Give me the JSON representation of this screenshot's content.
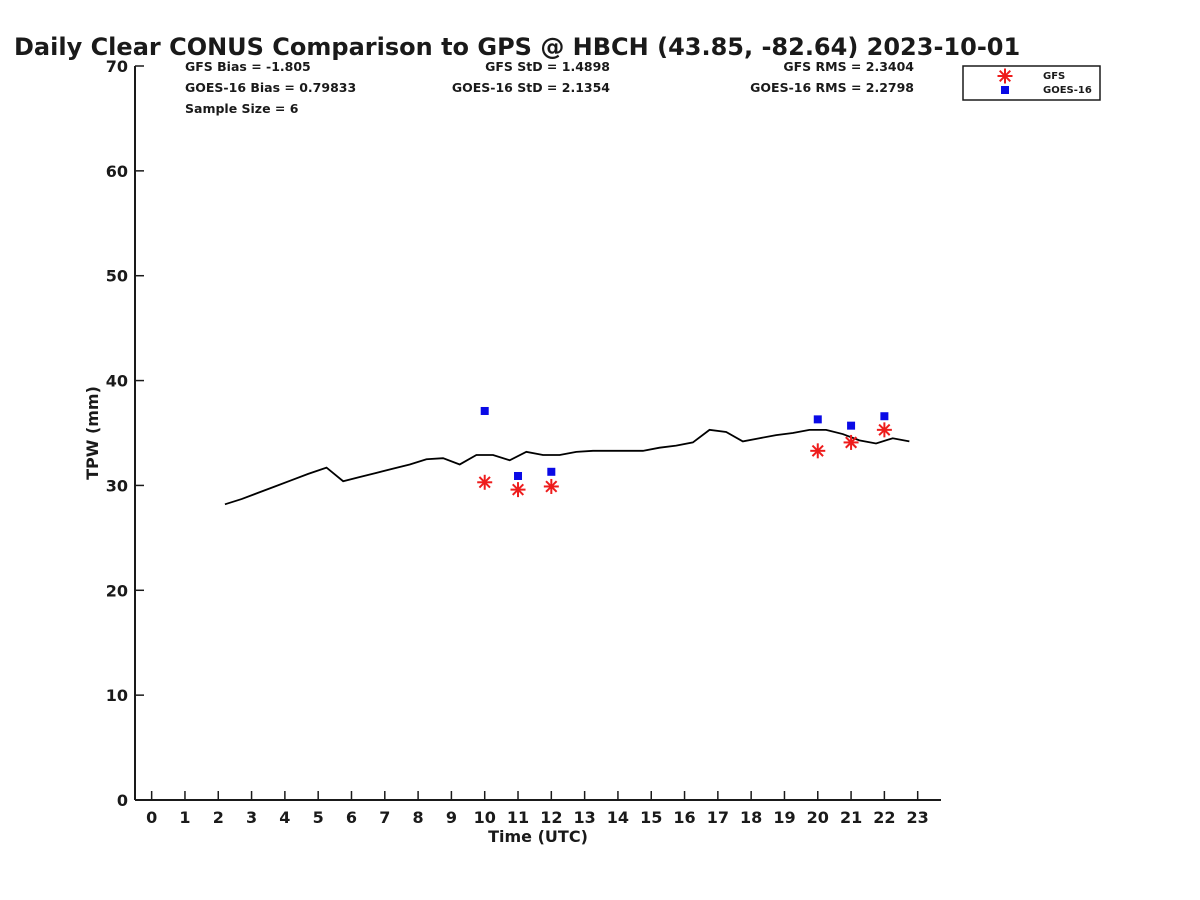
{
  "chart_data": {
    "type": "line",
    "title": "Daily Clear CONUS Comparison to GPS @ HBCH (43.85, -82.64) 2023-10-01",
    "xlabel": "Time (UTC)",
    "ylabel": "TPW (mm)",
    "xlim": [
      -0.5,
      23.7
    ],
    "ylim": [
      0,
      70
    ],
    "xticks": [
      0,
      1,
      2,
      3,
      4,
      5,
      6,
      7,
      8,
      9,
      10,
      11,
      12,
      13,
      14,
      15,
      16,
      17,
      18,
      19,
      20,
      21,
      22,
      23
    ],
    "yticks": [
      0,
      10,
      20,
      30,
      40,
      50,
      60,
      70
    ],
    "grid": false,
    "legend_position": "top-right",
    "stats": [
      "GFS Bias = -1.805",
      "GFS StD = 1.4898",
      "GFS RMS = 2.3404",
      "GOES-16 Bias = 0.79833",
      "GOES-16 StD = 2.1354",
      "GOES-16 RMS = 2.2798",
      "Sample Size = 6"
    ],
    "series": [
      {
        "kind": "line",
        "color": "#000000",
        "x": [
          2.2,
          2.7,
          3.2,
          3.7,
          4.2,
          4.7,
          5.25,
          5.75,
          6.25,
          6.75,
          7.25,
          7.75,
          8.25,
          8.75,
          9.25,
          9.75,
          10.25,
          10.75,
          11.25,
          11.75,
          12.25,
          12.75,
          13.25,
          13.75,
          14.25,
          14.75,
          15.25,
          15.75,
          16.25,
          16.75,
          17.25,
          17.75,
          18.25,
          18.75,
          19.25,
          19.75,
          20.25,
          20.75,
          21.25,
          21.75,
          22.25,
          22.75
        ],
        "y": [
          28.2,
          28.7,
          29.3,
          29.9,
          30.5,
          31.1,
          31.7,
          30.4,
          30.8,
          31.2,
          31.6,
          32.0,
          32.5,
          32.6,
          32.0,
          32.9,
          32.9,
          32.4,
          33.2,
          32.9,
          32.9,
          33.2,
          33.3,
          33.3,
          33.3,
          33.3,
          33.6,
          33.8,
          34.1,
          35.3,
          35.1,
          34.2,
          34.5,
          34.8,
          35.0,
          35.3,
          35.3,
          34.9,
          34.3,
          34.0,
          34.5,
          34.2
        ]
      },
      {
        "kind": "scatter",
        "name": "GFS",
        "marker": "asterisk",
        "color": "#ee1c1c",
        "x": [
          10,
          11,
          12,
          20,
          21,
          22
        ],
        "y": [
          30.3,
          29.6,
          29.9,
          33.3,
          34.1,
          35.3
        ]
      },
      {
        "kind": "scatter",
        "name": "GOES-16",
        "marker": "square",
        "color": "#0a0ae6",
        "x": [
          10,
          11,
          12,
          20,
          21,
          22
        ],
        "y": [
          37.1,
          30.9,
          31.3,
          36.3,
          35.7,
          36.6
        ]
      }
    ]
  }
}
